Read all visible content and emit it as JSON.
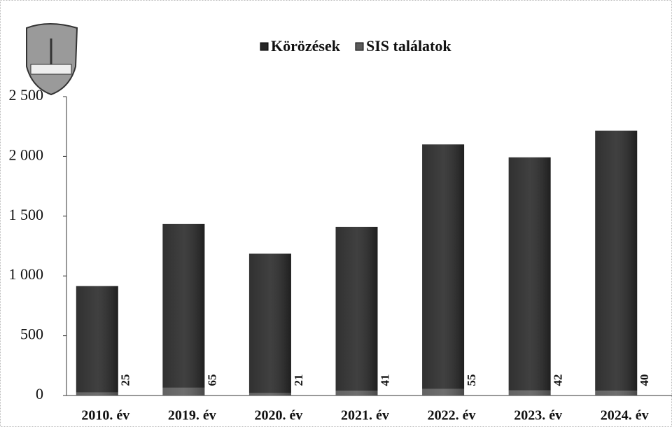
{
  "chart_data": {
    "type": "bar",
    "stacked": true,
    "categories": [
      "2010. év",
      "2019. év",
      "2020. év",
      "2021. év",
      "2022. év",
      "2023. év",
      "2024. év"
    ],
    "series": [
      {
        "name": "Körözések",
        "color": "#262626",
        "values": [
          890,
          1370,
          1165,
          1370,
          2045,
          1950,
          2175
        ]
      },
      {
        "name": "SIS találatok",
        "color": "#5a5a5a",
        "values": [
          25,
          65,
          21,
          41,
          55,
          42,
          40
        ]
      }
    ],
    "ylim": [
      0,
      2500
    ],
    "yticks": [
      0,
      500,
      {
        "value": 1000,
        "label": "1 000"
      },
      {
        "value": 1500,
        "label": "1 500"
      },
      {
        "value": 2000,
        "label": "2 000"
      },
      {
        "value": 2500,
        "label": "2 500"
      }
    ],
    "grid": false
  }
}
